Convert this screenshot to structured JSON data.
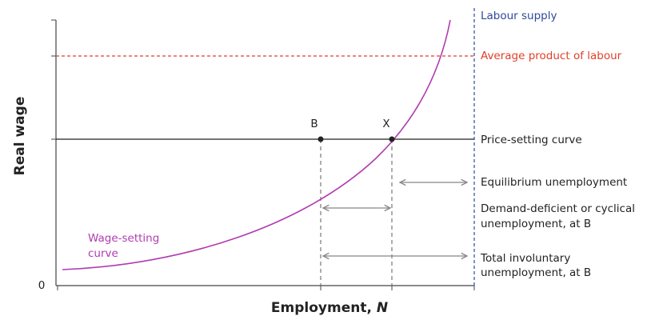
{
  "y_axis_label": "Real wage",
  "x_axis_label": [
    "Employment, ",
    "N"
  ],
  "origin_label": "0",
  "points": [
    "B",
    "X"
  ],
  "curves": {
    "labour_supply": "Labour supply",
    "average_product": "Average product of labour",
    "price_setting": "Price-setting curve",
    "wage_setting": [
      "Wage-setting",
      "curve"
    ]
  },
  "annotations": {
    "equilibrium": "Equilibrium unemployment",
    "demand_deficient": [
      "Demand-deficient or cyclical",
      "unemployment, at B"
    ],
    "total": [
      "Total involuntary",
      "unemployment, at B"
    ]
  }
}
